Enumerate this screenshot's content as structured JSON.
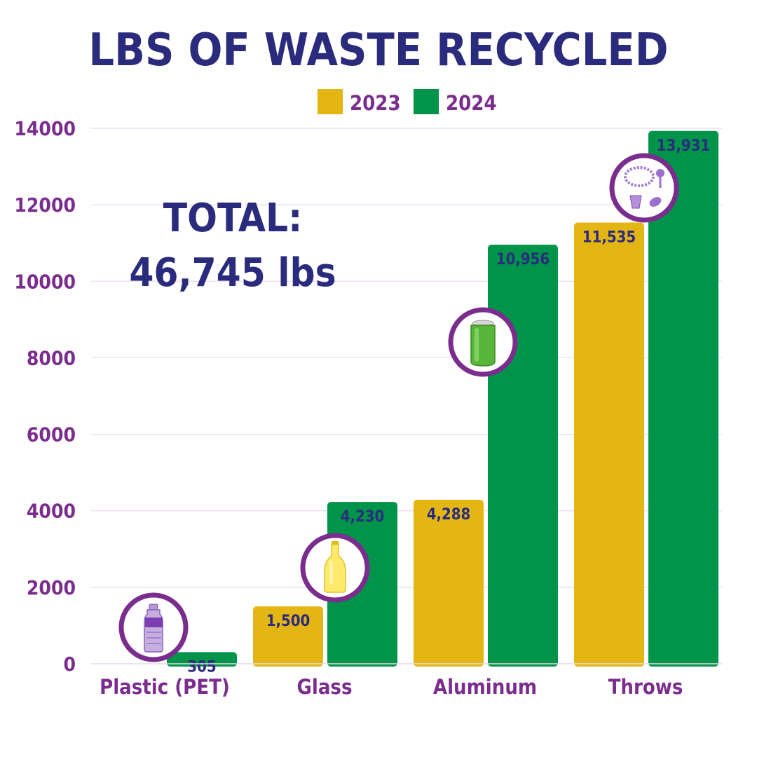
{
  "colors": {
    "title": "#2b2b7e",
    "axis_text": "#7b2d8e",
    "grid": "#ead8f0",
    "series_2023": "#e3b614",
    "series_2024": "#00944a",
    "value_label": "#2b2b7e",
    "icon_ring": "#7b2d8e"
  },
  "chart_data": {
    "type": "bar",
    "title": "LBS OF WASTE RECYCLED",
    "categories": [
      "Plastic (PET)",
      "Glass",
      "Aluminum",
      "Throws"
    ],
    "series": [
      {
        "name": "2023",
        "values": [
          0,
          1500,
          4288,
          11535
        ],
        "labels": [
          "",
          "1,500",
          "4,288",
          "11,535"
        ]
      },
      {
        "name": "2024",
        "values": [
          305,
          4230,
          10956,
          13931
        ],
        "labels": [
          "305",
          "4,230",
          "10,956",
          "13,931"
        ]
      }
    ],
    "ylim": [
      0,
      14000
    ],
    "yticks": [
      "0",
      "2000",
      "4000",
      "6000",
      "8000",
      "10000",
      "12000",
      "14000"
    ],
    "grid": true,
    "legend_position": "top-right",
    "annotation": {
      "line1": "TOTAL:",
      "line2": "46,745 lbs"
    },
    "category_icons": [
      "water-bottle-icon",
      "glass-bottle-icon",
      "aluminum-can-icon",
      "mardi-gras-throws-icon"
    ]
  }
}
